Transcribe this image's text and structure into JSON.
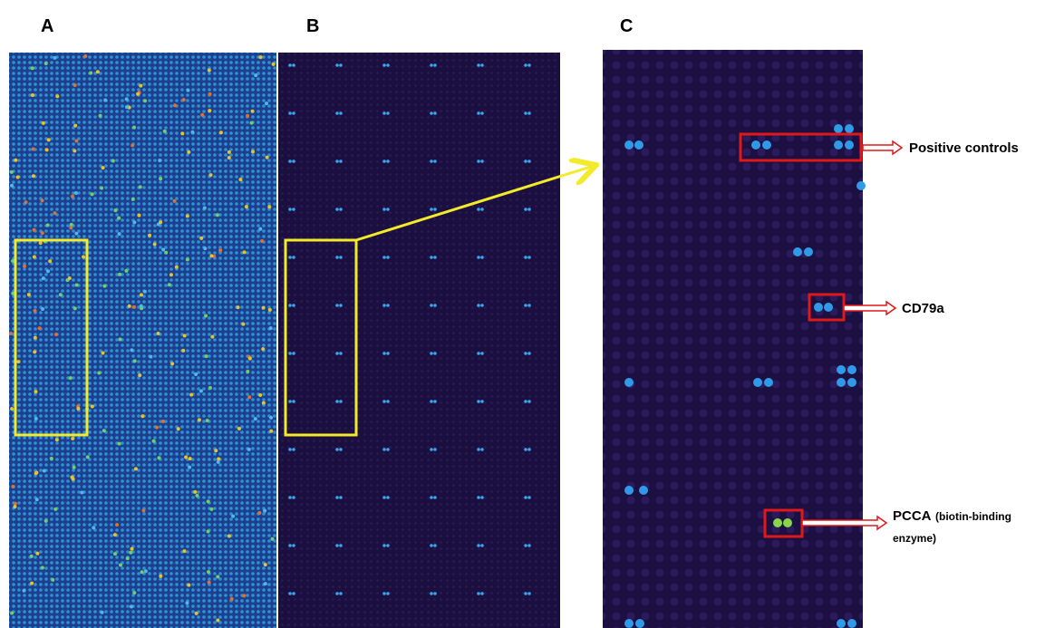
{
  "panels": [
    {
      "label": "A"
    },
    {
      "label": "B"
    },
    {
      "label": "C"
    }
  ],
  "annotations": [
    {
      "label": "Positive controls"
    },
    {
      "label": "CD79a"
    },
    {
      "label": "PCCA",
      "detail_lines": [
        "(biotin-binding",
        "enzyme)"
      ]
    }
  ]
}
